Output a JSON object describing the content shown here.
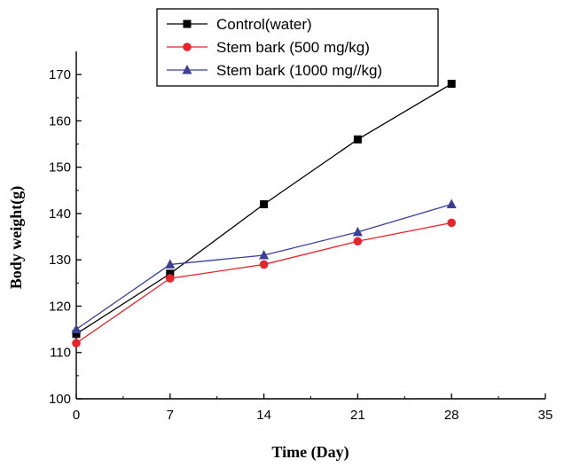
{
  "chart_data": {
    "type": "line",
    "title": "",
    "xlabel": "Time (Day)",
    "ylabel": "Body weight(g)",
    "xlim": [
      0,
      35
    ],
    "ylim": [
      100,
      175
    ],
    "xticks": [
      "0",
      "7",
      "14",
      "21",
      "28",
      "35"
    ],
    "yticks": [
      "100",
      "110",
      "120",
      "130",
      "140",
      "150",
      "160",
      "170"
    ],
    "x": [
      0,
      7,
      14,
      21,
      28
    ],
    "grid": false,
    "legend_position": "top-center",
    "series": [
      {
        "name": "Control(water)",
        "marker": "square",
        "color": "#000000",
        "values": [
          114,
          127,
          142,
          156,
          168
        ]
      },
      {
        "name": "Stem bark (500 mg/kg)",
        "marker": "circle",
        "color": "#e8232a",
        "values": [
          112,
          126,
          129,
          134,
          138
        ]
      },
      {
        "name": "Stem bark (1000 mg//kg)",
        "marker": "triangle",
        "color": "#3a3f98",
        "values": [
          115,
          129,
          131,
          136,
          142
        ]
      }
    ]
  }
}
